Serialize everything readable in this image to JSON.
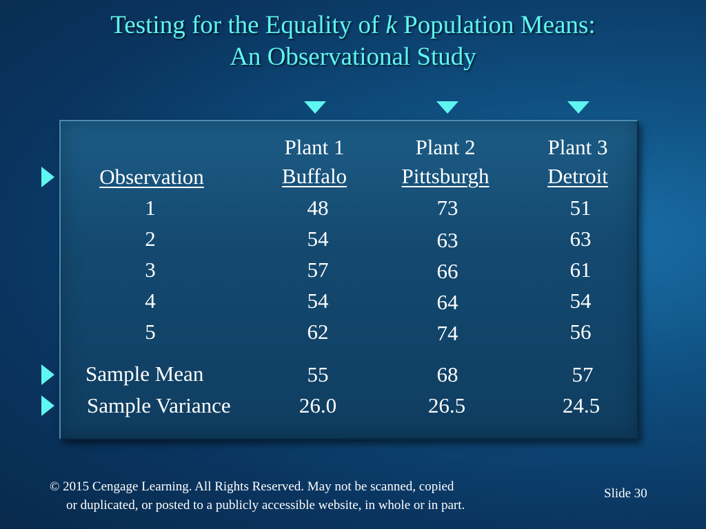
{
  "title": {
    "line1_prefix": "Testing for the Equality of ",
    "line1_italic": "k",
    "line1_suffix": "  Population Means:",
    "line2": "An Observational Study"
  },
  "table": {
    "row_header": "Observation",
    "columns": [
      {
        "line1": "Plant 1",
        "line2": "Buffalo"
      },
      {
        "line1": "Plant 2",
        "line2": "Pittsburgh"
      },
      {
        "line1": "Plant 3",
        "line2": "Detroit"
      }
    ],
    "observations": [
      "1",
      "2",
      "3",
      "4",
      "5"
    ],
    "values": [
      [
        "48",
        "54",
        "57",
        "54",
        "62"
      ],
      [
        "73",
        "63",
        "66",
        "64",
        "74"
      ],
      [
        "51",
        "63",
        "61",
        "54",
        "56"
      ]
    ],
    "sample_mean_label": "Sample Mean",
    "sample_means": [
      "55",
      "68",
      "57"
    ],
    "sample_variance_label": "Sample Variance",
    "sample_variances": [
      "26.0",
      "26.5",
      "24.5"
    ]
  },
  "footer": {
    "line1": "© 2015  Cengage Learning.  All Rights Reserved.  May not be scanned, copied",
    "line2": "or duplicated, or posted to a publicly accessible website, in whole or in part."
  },
  "slide_label": "Slide  30",
  "colors": {
    "accent": "#5ff5f0",
    "text": "#ffffff",
    "background": "#0f4f80"
  },
  "icons": [
    "down-triangle-icon",
    "right-triangle-icon"
  ]
}
